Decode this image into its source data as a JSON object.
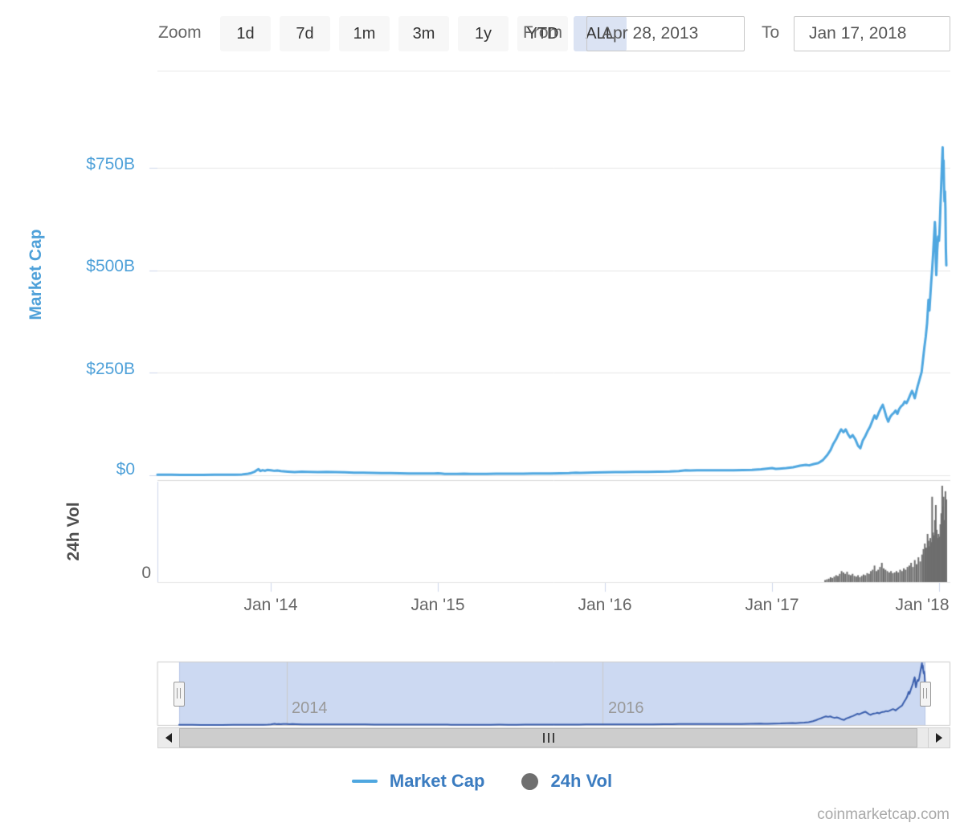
{
  "toolbar": {
    "zoom_label": "Zoom",
    "buttons": [
      {
        "label": "1d",
        "selected": false
      },
      {
        "label": "7d",
        "selected": false
      },
      {
        "label": "1m",
        "selected": false
      },
      {
        "label": "3m",
        "selected": false
      },
      {
        "label": "1y",
        "selected": false
      },
      {
        "label": "YTD",
        "selected": false
      },
      {
        "label": "ALL",
        "selected": true
      }
    ],
    "from_label": "From",
    "from_value": "Apr 28, 2013",
    "to_label": "To",
    "to_value": "Jan 17, 2018"
  },
  "colors": {
    "line_blue": "#4fa7e0",
    "axis_label_blue": "#4fa1d9",
    "legend_text_blue": "#3b7cc0",
    "volume_gray": "#6e6e6e",
    "navigator_line": "#3b5fad",
    "navigator_mask": "#ccd9f2",
    "selected_button_bg": "#dbe3f3",
    "button_bg": "#f7f7f7",
    "gridline": "#e6e6e6",
    "axis_tick": "#ccd6eb"
  },
  "chart_data": {
    "type": "line",
    "title": "",
    "x_start_date": "Apr 28, 2013",
    "x_end_date": "Jan 17, 2018",
    "x_total_days": 1725,
    "grid": true,
    "legend_position": "bottom-center",
    "y_axis_title": "Market Cap",
    "volume_axis_title": "24h Vol",
    "ylim_marketcap_billions": [
      0,
      810
    ],
    "ylim_volume_billions": [
      0,
      70
    ],
    "y_ticks": [
      {
        "label": "$0",
        "value": 0
      },
      {
        "label": "$250B",
        "value": 250
      },
      {
        "label": "$500B",
        "value": 500
      },
      {
        "label": "$750B",
        "value": 750
      }
    ],
    "volume_y_ticks": [
      {
        "label": "0",
        "value": 0
      }
    ],
    "x_ticks": [
      {
        "label": "Jan '14",
        "day": 248
      },
      {
        "label": "Jan '15",
        "day": 613
      },
      {
        "label": "Jan '16",
        "day": 978
      },
      {
        "label": "Jan '17",
        "day": 1344
      },
      {
        "label": "Jan '18",
        "day": 1709
      }
    ],
    "navigator_years": [
      {
        "label": "2014",
        "day": 248
      },
      {
        "label": "2016",
        "day": 978
      }
    ],
    "series": [
      {
        "name": "Market Cap",
        "type": "line",
        "unit": "USD billions",
        "points_day_value": [
          [
            0,
            1.5
          ],
          [
            14,
            1.4
          ],
          [
            30,
            1.3
          ],
          [
            50,
            1.15
          ],
          [
            75,
            1.1
          ],
          [
            100,
            1.2
          ],
          [
            125,
            1.3
          ],
          [
            150,
            1.45
          ],
          [
            170,
            1.6
          ],
          [
            185,
            2.2
          ],
          [
            195,
            3.2
          ],
          [
            205,
            5.5
          ],
          [
            212,
            8.5
          ],
          [
            218,
            13
          ],
          [
            221,
            15
          ],
          [
            225,
            10.5
          ],
          [
            230,
            12.5
          ],
          [
            235,
            11
          ],
          [
            240,
            13
          ],
          [
            248,
            12.2
          ],
          [
            255,
            11
          ],
          [
            262,
            11.8
          ],
          [
            270,
            10.2
          ],
          [
            285,
            9
          ],
          [
            300,
            7.8
          ],
          [
            315,
            8.6
          ],
          [
            330,
            8.2
          ],
          [
            350,
            8
          ],
          [
            370,
            8.3
          ],
          [
            390,
            7.9
          ],
          [
            410,
            7.4
          ],
          [
            430,
            6.6
          ],
          [
            450,
            6.2
          ],
          [
            470,
            5.8
          ],
          [
            490,
            5.2
          ],
          [
            510,
            5.6
          ],
          [
            530,
            4.9
          ],
          [
            550,
            4.6
          ],
          [
            570,
            4.3
          ],
          [
            590,
            4.6
          ],
          [
            605,
            4.4
          ],
          [
            613,
            4.9
          ],
          [
            620,
            4.2
          ],
          [
            628,
            3.3
          ],
          [
            640,
            3.6
          ],
          [
            655,
            3.4
          ],
          [
            670,
            3.7
          ],
          [
            685,
            3.3
          ],
          [
            700,
            3.4
          ],
          [
            720,
            3.6
          ],
          [
            740,
            3.9
          ],
          [
            760,
            3.7
          ],
          [
            780,
            3.8
          ],
          [
            800,
            4.1
          ],
          [
            820,
            4.4
          ],
          [
            840,
            4.2
          ],
          [
            860,
            4.6
          ],
          [
            880,
            4.9
          ],
          [
            900,
            5.2
          ],
          [
            915,
            6.3
          ],
          [
            925,
            6
          ],
          [
            940,
            6.6
          ],
          [
            955,
            6.9
          ],
          [
            978,
            7.1
          ],
          [
            1000,
            7.6
          ],
          [
            1020,
            8
          ],
          [
            1045,
            8.3
          ],
          [
            1070,
            8.5
          ],
          [
            1095,
            8.9
          ],
          [
            1120,
            9.4
          ],
          [
            1140,
            10.3
          ],
          [
            1155,
            12.4
          ],
          [
            1165,
            11.8
          ],
          [
            1180,
            12.1
          ],
          [
            1200,
            12
          ],
          [
            1220,
            12.3
          ],
          [
            1240,
            12.1
          ],
          [
            1260,
            12.4
          ],
          [
            1280,
            12.8
          ],
          [
            1300,
            13.3
          ],
          [
            1320,
            14.6
          ],
          [
            1344,
            17.7
          ],
          [
            1352,
            15.6
          ],
          [
            1360,
            16.2
          ],
          [
            1375,
            17.5
          ],
          [
            1390,
            19.5
          ],
          [
            1405,
            23.5
          ],
          [
            1418,
            25.5
          ],
          [
            1425,
            24.2
          ],
          [
            1435,
            27.5
          ],
          [
            1445,
            30
          ],
          [
            1455,
            37
          ],
          [
            1465,
            50
          ],
          [
            1472,
            62
          ],
          [
            1478,
            77
          ],
          [
            1484,
            88
          ],
          [
            1490,
            102
          ],
          [
            1495,
            112
          ],
          [
            1500,
            105
          ],
          [
            1505,
            112
          ],
          [
            1510,
            100
          ],
          [
            1515,
            92
          ],
          [
            1520,
            98
          ],
          [
            1526,
            88
          ],
          [
            1532,
            72
          ],
          [
            1537,
            66
          ],
          [
            1542,
            84
          ],
          [
            1548,
            96
          ],
          [
            1553,
            108
          ],
          [
            1558,
            118
          ],
          [
            1563,
            132
          ],
          [
            1568,
            146
          ],
          [
            1572,
            138
          ],
          [
            1577,
            152
          ],
          [
            1582,
            164
          ],
          [
            1586,
            172
          ],
          [
            1590,
            158
          ],
          [
            1594,
            142
          ],
          [
            1598,
            131
          ],
          [
            1602,
            142
          ],
          [
            1606,
            148
          ],
          [
            1610,
            152
          ],
          [
            1614,
            158
          ],
          [
            1618,
            150
          ],
          [
            1622,
            162
          ],
          [
            1626,
            168
          ],
          [
            1630,
            172
          ],
          [
            1634,
            180
          ],
          [
            1638,
            176
          ],
          [
            1642,
            185
          ],
          [
            1646,
            196
          ],
          [
            1650,
            206
          ],
          [
            1653,
            198
          ],
          [
            1656,
            188
          ],
          [
            1659,
            202
          ],
          [
            1662,
            216
          ],
          [
            1665,
            228
          ],
          [
            1668,
            240
          ],
          [
            1671,
            252
          ],
          [
            1674,
            282
          ],
          [
            1677,
            312
          ],
          [
            1680,
            338
          ],
          [
            1683,
            372
          ],
          [
            1686,
            428
          ],
          [
            1688,
            402
          ],
          [
            1690,
            438
          ],
          [
            1692,
            472
          ],
          [
            1694,
            502
          ],
          [
            1696,
            538
          ],
          [
            1698,
            578
          ],
          [
            1700,
            618
          ],
          [
            1701,
            598
          ],
          [
            1702,
            522
          ],
          [
            1703,
            488
          ],
          [
            1705,
            548
          ],
          [
            1707,
            582
          ],
          [
            1709,
            572
          ],
          [
            1710,
            592
          ],
          [
            1711,
            618
          ],
          [
            1712,
            652
          ],
          [
            1713,
            682
          ],
          [
            1714,
            712
          ],
          [
            1715,
            742
          ],
          [
            1716,
            772
          ],
          [
            1717,
            800
          ],
          [
            1718,
            742
          ],
          [
            1719,
            768
          ],
          [
            1720,
            706
          ],
          [
            1721,
            668
          ],
          [
            1722,
            692
          ],
          [
            1723,
            652
          ],
          [
            1724,
            552
          ],
          [
            1725,
            512
          ]
        ]
      },
      {
        "name": "24h Vol",
        "type": "bar",
        "unit": "USD billions",
        "points_day_value": [
          [
            1460,
            1.5
          ],
          [
            1464,
            2
          ],
          [
            1468,
            2.5
          ],
          [
            1472,
            3.5
          ],
          [
            1476,
            3
          ],
          [
            1480,
            4
          ],
          [
            1484,
            5
          ],
          [
            1488,
            4.5
          ],
          [
            1492,
            6
          ],
          [
            1496,
            8
          ],
          [
            1500,
            7
          ],
          [
            1504,
            6
          ],
          [
            1508,
            7.5
          ],
          [
            1512,
            5.5
          ],
          [
            1516,
            5
          ],
          [
            1520,
            6
          ],
          [
            1524,
            4.5
          ],
          [
            1528,
            4
          ],
          [
            1532,
            5
          ],
          [
            1536,
            3.5
          ],
          [
            1540,
            4.5
          ],
          [
            1544,
            5.5
          ],
          [
            1548,
            5
          ],
          [
            1552,
            6.5
          ],
          [
            1556,
            6
          ],
          [
            1560,
            8
          ],
          [
            1564,
            9
          ],
          [
            1568,
            12
          ],
          [
            1572,
            8
          ],
          [
            1576,
            9
          ],
          [
            1580,
            11
          ],
          [
            1584,
            14
          ],
          [
            1588,
            10
          ],
          [
            1592,
            9
          ],
          [
            1596,
            8
          ],
          [
            1600,
            7
          ],
          [
            1604,
            8
          ],
          [
            1608,
            6.5
          ],
          [
            1612,
            7
          ],
          [
            1616,
            8
          ],
          [
            1620,
            7
          ],
          [
            1624,
            9
          ],
          [
            1628,
            8
          ],
          [
            1632,
            10
          ],
          [
            1636,
            9
          ],
          [
            1640,
            11
          ],
          [
            1644,
            12
          ],
          [
            1648,
            14
          ],
          [
            1652,
            11
          ],
          [
            1656,
            16
          ],
          [
            1660,
            13
          ],
          [
            1664,
            18
          ],
          [
            1668,
            15
          ],
          [
            1672,
            20
          ],
          [
            1675,
            24
          ],
          [
            1678,
            28
          ],
          [
            1681,
            25
          ],
          [
            1684,
            35
          ],
          [
            1686,
            30
          ],
          [
            1688,
            26
          ],
          [
            1690,
            32
          ],
          [
            1692,
            29
          ],
          [
            1694,
            62
          ],
          [
            1696,
            36
          ],
          [
            1698,
            34
          ],
          [
            1700,
            45
          ],
          [
            1702,
            56
          ],
          [
            1704,
            38
          ],
          [
            1706,
            32
          ],
          [
            1708,
            35
          ],
          [
            1710,
            33
          ],
          [
            1712,
            42
          ],
          [
            1714,
            50
          ],
          [
            1716,
            70
          ],
          [
            1717,
            48
          ],
          [
            1718,
            55
          ],
          [
            1719,
            62
          ],
          [
            1720,
            45
          ],
          [
            1721,
            40
          ],
          [
            1722,
            38
          ],
          [
            1723,
            66
          ],
          [
            1724,
            56
          ],
          [
            1725,
            60
          ]
        ]
      }
    ]
  },
  "legend": {
    "items": [
      {
        "label": "Market Cap",
        "marker": "line"
      },
      {
        "label": "24h Vol",
        "marker": "circle"
      }
    ]
  },
  "footer": {
    "credit": "coinmarketcap.com"
  }
}
